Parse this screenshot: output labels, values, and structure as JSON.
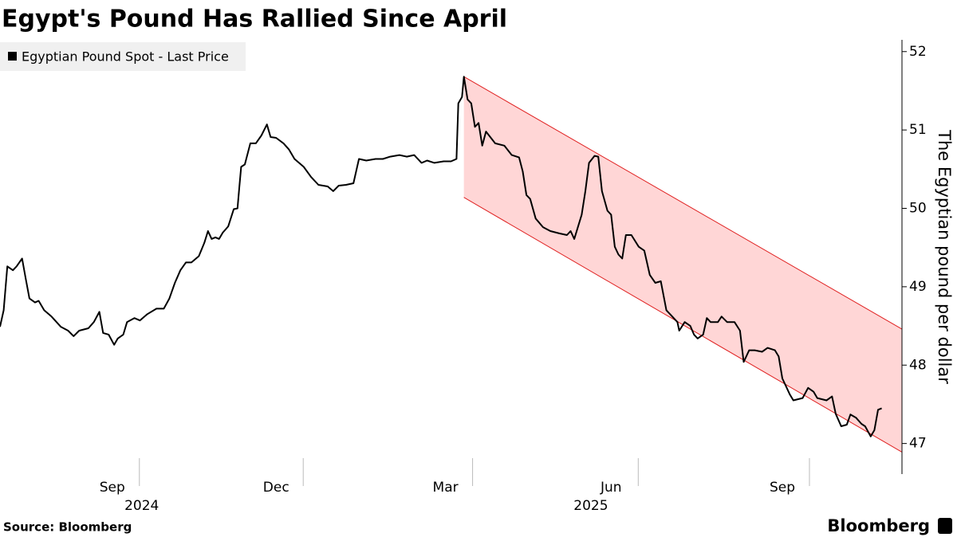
{
  "chart_data": {
    "type": "line",
    "title": "Egypt's Pound Has Rallied Since April",
    "ylabel": "The Egyptian pound per dollar",
    "source": "Source: Bloomberg",
    "brand": "Bloomberg",
    "legend": "top-left",
    "xlim": [
      0,
      490
    ],
    "ylim": [
      46.61,
      52.15
    ],
    "yticks": [
      47,
      48,
      49,
      50,
      51,
      52
    ],
    "xticks": [
      {
        "value": 61,
        "label": "Sep"
      },
      {
        "value": 150,
        "label": "Dec"
      },
      {
        "value": 242,
        "label": "Mar"
      },
      {
        "value": 332,
        "label": "Jun"
      },
      {
        "value": 425,
        "label": "Sep"
      }
    ],
    "year_labels": [
      {
        "value": 77,
        "label": "2024"
      },
      {
        "value": 321,
        "label": "2025"
      }
    ],
    "x": [
      0,
      2,
      4,
      7,
      9,
      12,
      14,
      16,
      19,
      21,
      24,
      28,
      33,
      37,
      40,
      43,
      48,
      51,
      54,
      56,
      59,
      62,
      64,
      67,
      69,
      73,
      76,
      80,
      85,
      89,
      92,
      95,
      98,
      101,
      104,
      108,
      111,
      113,
      115,
      117,
      119,
      121,
      124,
      127,
      129,
      130,
      131,
      133,
      136,
      139,
      142,
      145,
      147,
      150,
      154,
      157,
      160,
      165,
      169,
      173,
      178,
      181,
      184,
      188,
      192,
      195,
      199,
      204,
      208,
      212,
      217,
      221,
      225,
      229,
      232,
      236,
      241,
      245,
      248,
      249,
      251,
      252,
      254,
      256,
      258,
      260,
      262,
      264,
      269,
      274,
      278,
      282,
      284,
      286,
      288,
      291,
      295,
      299,
      304,
      308,
      310,
      312,
      316,
      318,
      320,
      323,
      325,
      327,
      330,
      332,
      334,
      336,
      338,
      340,
      343,
      347,
      350,
      353,
      356,
      359,
      362,
      364,
      368,
      369,
      372,
      375,
      377,
      379,
      382,
      384,
      386,
      390,
      392,
      395,
      399,
      402,
      404,
      407,
      410,
      414,
      417,
      421,
      423,
      425,
      429,
      431,
      436,
      439,
      442,
      444,
      449,
      452,
      454,
      457,
      460,
      462,
      465,
      468,
      470,
      473,
      475,
      477,
      479
    ],
    "series": [
      {
        "name": "Egyptian Pound Spot - Last Price",
        "color": "#000000",
        "values": [
          48.49,
          48.7,
          49.26,
          49.21,
          49.26,
          49.36,
          49.1,
          48.85,
          48.8,
          48.82,
          48.7,
          48.62,
          48.49,
          48.44,
          48.37,
          48.44,
          48.47,
          48.55,
          48.68,
          48.41,
          48.39,
          48.26,
          48.34,
          48.39,
          48.55,
          48.6,
          48.57,
          48.65,
          48.72,
          48.72,
          48.85,
          49.05,
          49.21,
          49.31,
          49.31,
          49.39,
          49.56,
          49.71,
          49.61,
          49.63,
          49.61,
          49.69,
          49.77,
          49.99,
          50.0,
          50.27,
          50.53,
          50.56,
          50.83,
          50.83,
          50.93,
          51.07,
          50.91,
          50.9,
          50.83,
          50.75,
          50.63,
          50.53,
          50.4,
          50.3,
          50.28,
          50.22,
          50.29,
          50.3,
          50.32,
          50.63,
          50.61,
          50.63,
          50.63,
          50.66,
          50.68,
          50.66,
          50.68,
          50.58,
          50.61,
          50.58,
          50.6,
          50.6,
          50.63,
          51.34,
          51.42,
          51.68,
          51.39,
          51.34,
          51.04,
          51.09,
          50.8,
          50.98,
          50.83,
          50.8,
          50.68,
          50.65,
          50.47,
          50.17,
          50.12,
          49.87,
          49.76,
          49.71,
          49.68,
          49.66,
          49.71,
          49.61,
          49.92,
          50.22,
          50.58,
          50.67,
          50.66,
          50.22,
          49.97,
          49.92,
          49.51,
          49.41,
          49.36,
          49.66,
          49.66,
          49.51,
          49.46,
          49.15,
          49.05,
          49.07,
          48.7,
          48.65,
          48.55,
          48.44,
          48.55,
          48.5,
          48.39,
          48.34,
          48.39,
          48.6,
          48.55,
          48.55,
          48.62,
          48.55,
          48.55,
          48.44,
          48.04,
          48.19,
          48.19,
          48.17,
          48.22,
          48.19,
          48.11,
          47.83,
          47.63,
          47.55,
          47.58,
          47.71,
          47.66,
          47.58,
          47.55,
          47.6,
          47.38,
          47.22,
          47.24,
          47.37,
          47.33,
          47.25,
          47.22,
          47.09,
          47.17,
          47.43,
          47.45
        ]
      }
    ],
    "channel": {
      "x": [
        252,
        490
      ],
      "upper": [
        51.68,
        48.46
      ],
      "lower": [
        50.14,
        46.89
      ],
      "color": "#e02020",
      "fill": "#ffd6d6"
    }
  }
}
